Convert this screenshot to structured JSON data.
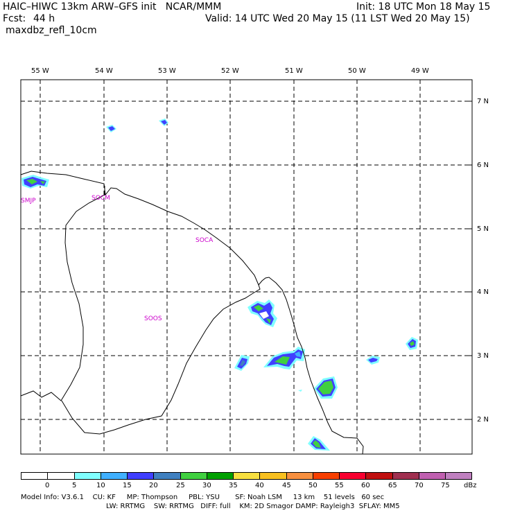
{
  "header": {
    "title": "HAIC–HIWC 13km ARW–GFS init   NCAR/MMM",
    "init": "Init: 18 UTC Mon 18 May 15",
    "fcst_label": "Fcst:",
    "fcst_value": "44 h",
    "valid": "Valid: 14 UTC Wed 20 May 15 (11 LST Wed 20 May 15)",
    "field": "maxdbz_refl_10cm"
  },
  "map": {
    "lon_labels": [
      "55 W",
      "54 W",
      "53 W",
      "52 W",
      "51 W",
      "50 W",
      "49 W"
    ],
    "lat_labels": [
      "7 N",
      "6 N",
      "5 N",
      "4 N",
      "3 N",
      "2 N"
    ],
    "stations": [
      "SMJP",
      "SOCM",
      "SOCA",
      "SOOS"
    ],
    "station_color": "#cc00cc"
  },
  "colorbar": {
    "ticks": [
      "0",
      "5",
      "10",
      "15",
      "20",
      "25",
      "30",
      "35",
      "40",
      "45",
      "50",
      "55",
      "60",
      "65",
      "70",
      "75"
    ],
    "unit": "dBz",
    "colors": [
      "#ffffff",
      "#ffffff",
      "#80ffff",
      "#40b0ff",
      "#4040ff",
      "#4080c0",
      "#40d040",
      "#00a000",
      "#f8e040",
      "#f8c020",
      "#f89040",
      "#f84000",
      "#f80030",
      "#c01010",
      "#a03050",
      "#c060b0",
      "#c080c0"
    ]
  },
  "footer": {
    "line1": "Model Info: V3.6.1    CU: KF     MP: Thompson     PBL: YSU       SF: Noah LSM     13 km    51 levels   60 sec",
    "line2": "LW: RRTMG    SW: RRTMG   DIFF: full    KM: 2D Smagor DAMP: Rayleigh3  SFLAY: MM5"
  }
}
